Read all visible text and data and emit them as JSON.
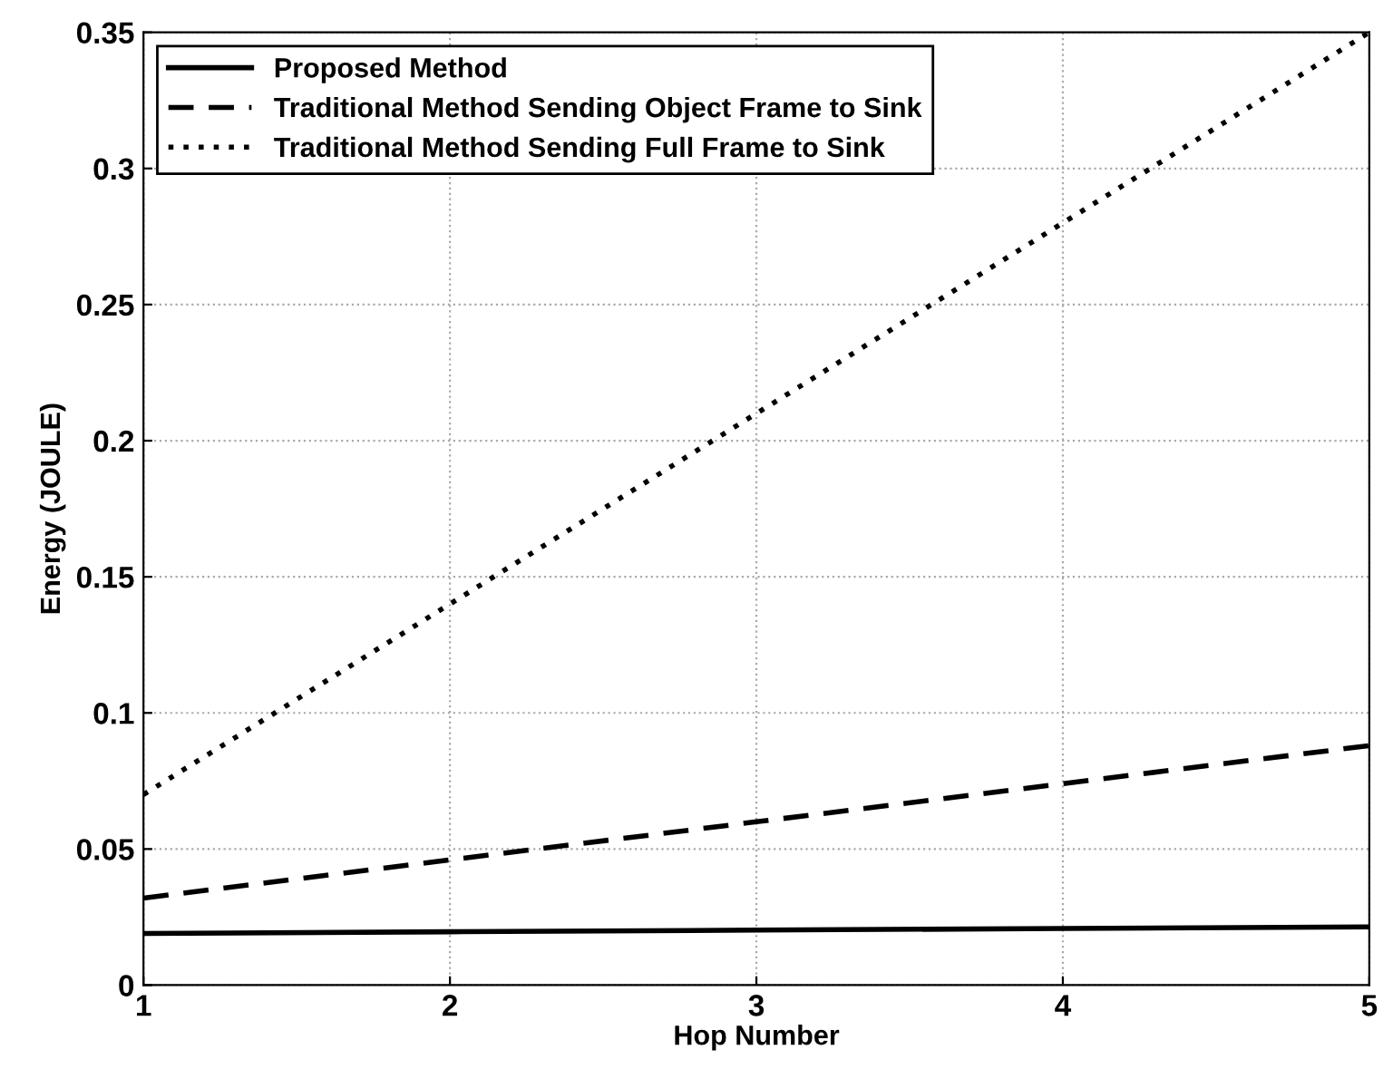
{
  "chart_data": {
    "type": "line",
    "xlabel": "Hop Number",
    "ylabel": "Energy (JOULE)",
    "x": [
      1,
      2,
      3,
      4,
      5
    ],
    "series": [
      {
        "name": "Proposed Method",
        "color": "#000000",
        "line_style": "solid",
        "values": [
          0.019,
          0.0196,
          0.0202,
          0.0208,
          0.0214
        ]
      },
      {
        "name": "Traditional Method Sending Object Frame to Sink",
        "color": "#000000",
        "line_style": "dashed",
        "values": [
          0.032,
          0.046,
          0.06,
          0.074,
          0.088
        ]
      },
      {
        "name": "Traditional Method Sending Full Frame to Sink",
        "color": "#000000",
        "line_style": "dotted",
        "values": [
          0.07,
          0.14,
          0.21,
          0.28,
          0.35
        ]
      }
    ],
    "xlim": [
      1,
      5
    ],
    "xticks": [
      1,
      2,
      3,
      4,
      5
    ],
    "ylim": [
      0,
      0.35
    ],
    "yticks": [
      0,
      0.05,
      0.1,
      0.15,
      0.2,
      0.25,
      0.3,
      0.35
    ],
    "grid": true,
    "legend": "top left",
    "marker": "none"
  }
}
